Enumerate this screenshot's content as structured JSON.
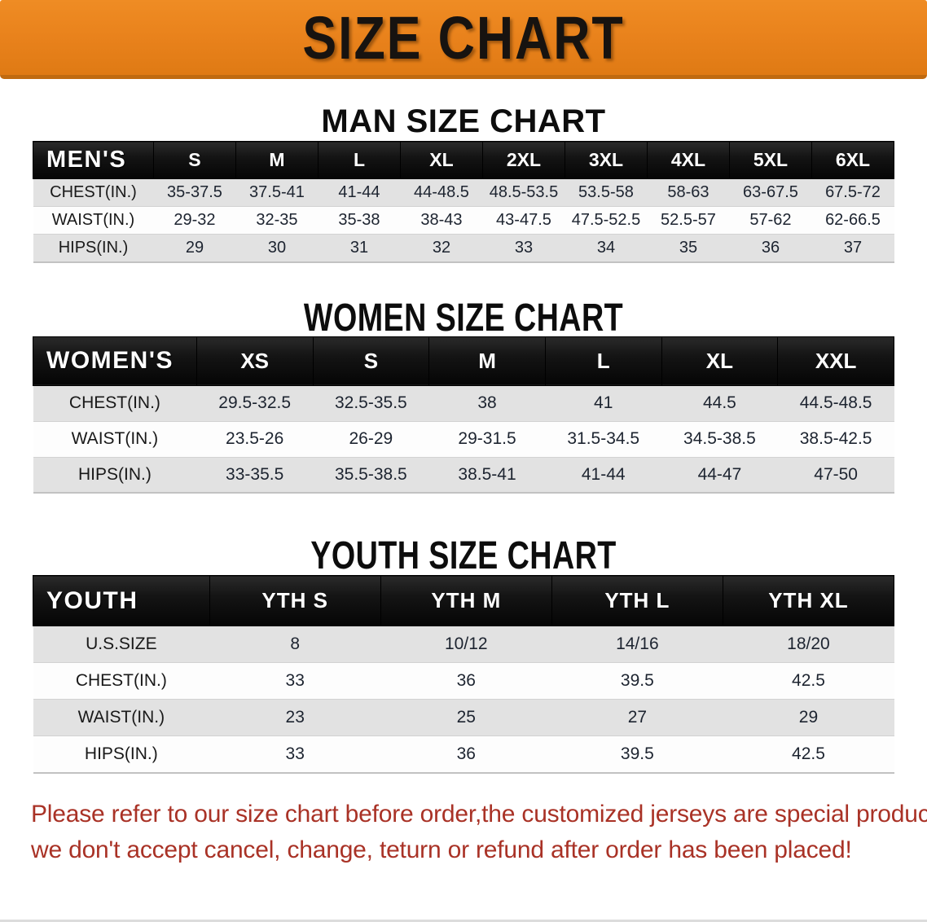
{
  "banner": {
    "title": "SIZE CHART"
  },
  "sections": [
    {
      "heading": "MAN SIZE CHART",
      "table": {
        "header_label": "MEN'S",
        "columns": [
          "S",
          "M",
          "L",
          "XL",
          "2XL",
          "3XL",
          "4XL",
          "5XL",
          "6XL"
        ],
        "rows": [
          {
            "label": "CHEST(IN.)",
            "values": [
              "35-37.5",
              "37.5-41",
              "41-44",
              "44-48.5",
              "48.5-53.5",
              "53.5-58",
              "58-63",
              "63-67.5",
              "67.5-72"
            ]
          },
          {
            "label": "WAIST(IN.)",
            "values": [
              "29-32",
              "32-35",
              "35-38",
              "38-43",
              "43-47.5",
              "47.5-52.5",
              "52.5-57",
              "57-62",
              "62-66.5"
            ]
          },
          {
            "label": "HIPS(IN.)",
            "values": [
              "29",
              "30",
              "31",
              "32",
              "33",
              "34",
              "35",
              "36",
              "37"
            ]
          }
        ]
      }
    },
    {
      "heading": "WOMEN SIZE CHART",
      "table": {
        "header_label": "WOMEN'S",
        "columns": [
          "XS",
          "S",
          "M",
          "L",
          "XL",
          "XXL"
        ],
        "rows": [
          {
            "label": "CHEST(IN.)",
            "values": [
              "29.5-32.5",
              "32.5-35.5",
              "38",
              "41",
              "44.5",
              "44.5-48.5"
            ]
          },
          {
            "label": "WAIST(IN.)",
            "values": [
              "23.5-26",
              "26-29",
              "29-31.5",
              "31.5-34.5",
              "34.5-38.5",
              "38.5-42.5"
            ]
          },
          {
            "label": "HIPS(IN.)",
            "values": [
              "33-35.5",
              "35.5-38.5",
              "38.5-41",
              "41-44",
              "44-47",
              "47-50"
            ]
          }
        ]
      }
    },
    {
      "heading": "YOUTH SIZE CHART",
      "table": {
        "header_label": "YOUTH",
        "columns": [
          "YTH S",
          "YTH M",
          "YTH L",
          "YTH XL"
        ],
        "rows": [
          {
            "label": "U.S.SIZE",
            "values": [
              "8",
              "10/12",
              "14/16",
              "18/20"
            ]
          },
          {
            "label": "CHEST(IN.)",
            "values": [
              "33",
              "36",
              "39.5",
              "42.5"
            ]
          },
          {
            "label": "WAIST(IN.)",
            "values": [
              "23",
              "25",
              "27",
              "29"
            ]
          },
          {
            "label": "HIPS(IN.)",
            "values": [
              "33",
              "36",
              "39.5",
              "42.5"
            ]
          }
        ]
      }
    }
  ],
  "disclaimer": {
    "line1": "Please refer to our size chart before order,the customized jerseys are special products,",
    "line2": "we don't accept cancel, change, teturn or refund after order has been placed!"
  },
  "colors": {
    "banner_bg": "#e8811b",
    "banner_edge": "#c06a10",
    "banner_text": "#171310",
    "header_bar_bg": "#141414",
    "header_bar_text": "#ffffff",
    "row_alt_bg": "#e2e2e2",
    "row_bg": "#fdfdfd",
    "disclaimer_red": "#a93226"
  }
}
